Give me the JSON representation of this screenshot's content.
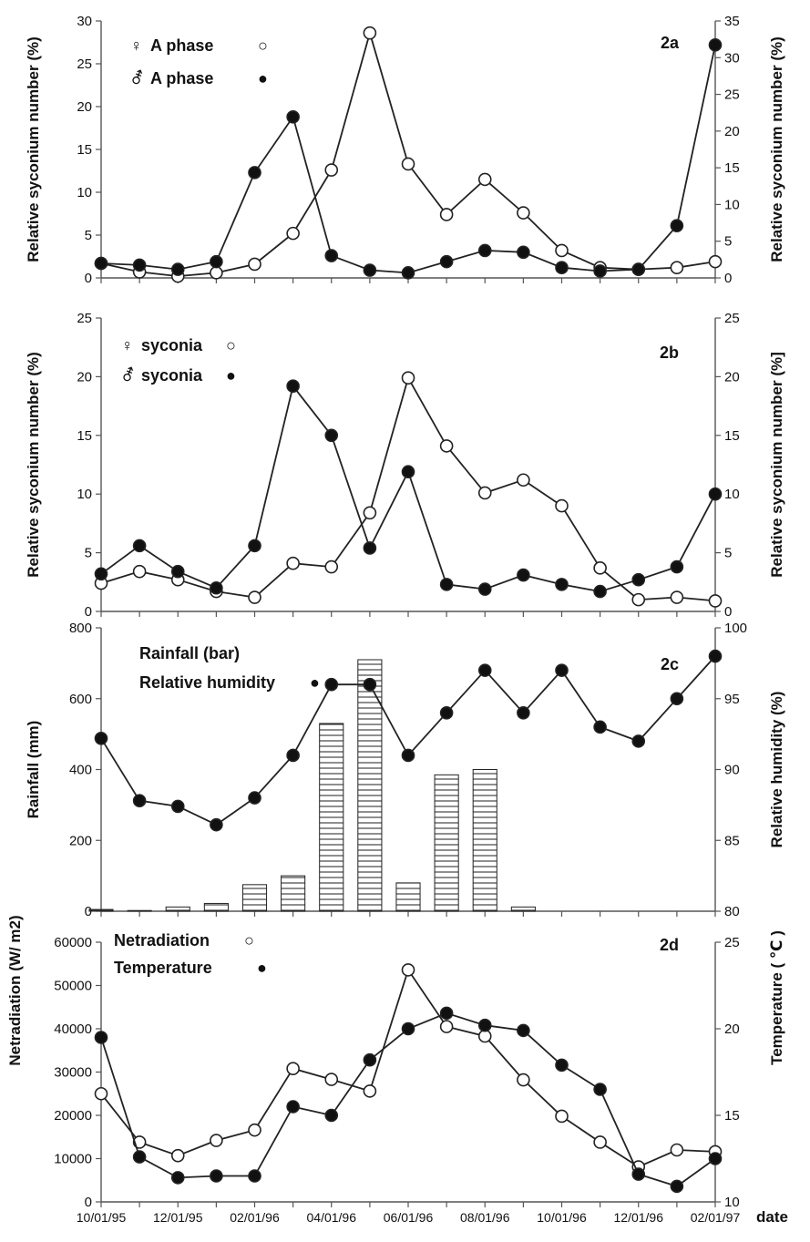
{
  "figure": {
    "x_ticks": [
      "10/01/95",
      "12/01/95",
      "02/01/96",
      "04/01/96",
      "06/01/96",
      "08/01/96",
      "10/01/96",
      "12/01/96",
      "02/01/97"
    ],
    "x_title": "date"
  },
  "chart_data": [
    {
      "id": "2a",
      "type": "line",
      "panel_label": "2a",
      "ylabel_left": "Relative syconium number (%)",
      "ylabel_right": "Relative syconium number (%)",
      "ylim_left": [
        0,
        30
      ],
      "yticks_left": [
        0,
        5,
        10,
        15,
        20,
        25,
        30
      ],
      "ylim_right": [
        0,
        35
      ],
      "yticks_right": [
        0,
        5,
        10,
        15,
        20,
        25,
        30,
        35
      ],
      "x": [
        "10/95",
        "11/95",
        "12/95",
        "01/96",
        "02/96",
        "03/96",
        "04/96",
        "05/96",
        "06/96",
        "07/96",
        "08/96",
        "09/96",
        "10/96",
        "11/96",
        "12/96",
        "01/97",
        "02/97"
      ],
      "legend": [
        {
          "symbol": "♀",
          "label": "A phase",
          "marker": "○"
        },
        {
          "symbol": "⚦",
          "label": "A phase",
          "marker": "●"
        }
      ],
      "series": [
        {
          "marker": "open",
          "axis": "left",
          "values": [
            1.7,
            0.7,
            0.2,
            0.6,
            1.6,
            5.2,
            12.6,
            28.6,
            13.3,
            7.4,
            11.5,
            7.6,
            3.2,
            1.2,
            1.0,
            1.2,
            1.9
          ]
        },
        {
          "marker": "filled",
          "axis": "left",
          "values": [
            1.7,
            1.5,
            1.0,
            1.9,
            12.3,
            18.8,
            2.6,
            0.9,
            0.6,
            1.9,
            3.2,
            3.0,
            1.2,
            0.8,
            1.0,
            6.1,
            27.2
          ]
        }
      ]
    },
    {
      "id": "2b",
      "type": "line",
      "panel_label": "2b",
      "ylabel_left": "Relative syconium number (%)",
      "ylabel_right": "Relative syconium number (%]",
      "ylim_left": [
        0,
        25
      ],
      "yticks_left": [
        0,
        5,
        10,
        15,
        20,
        25
      ],
      "ylim_right": [
        0,
        25
      ],
      "yticks_right": [
        0,
        5,
        10,
        15,
        20,
        25
      ],
      "x": [
        "10/95",
        "11/95",
        "12/95",
        "01/96",
        "02/96",
        "03/96",
        "04/96",
        "05/96",
        "06/96",
        "07/96",
        "08/96",
        "09/96",
        "10/96",
        "11/96",
        "12/96",
        "01/97",
        "02/97"
      ],
      "legend": [
        {
          "symbol": "♀",
          "label": "syconia",
          "marker": "○"
        },
        {
          "symbol": "⚦",
          "label": "syconia",
          "marker": "●"
        }
      ],
      "series": [
        {
          "marker": "open",
          "axis": "left",
          "values": [
            2.4,
            3.4,
            2.7,
            1.7,
            1.2,
            4.1,
            3.8,
            8.4,
            19.9,
            14.1,
            10.1,
            11.2,
            9.0,
            3.7,
            1.0,
            1.2,
            0.9
          ]
        },
        {
          "marker": "filled",
          "axis": "left",
          "values": [
            3.2,
            5.6,
            3.4,
            2.0,
            5.6,
            19.2,
            15.0,
            5.4,
            11.9,
            2.3,
            1.9,
            3.1,
            2.3,
            1.7,
            2.7,
            3.8,
            10.0
          ]
        }
      ]
    },
    {
      "id": "2c",
      "type": "bar",
      "panel_label": "2c",
      "ylabel_left": "Rainfall (mm)",
      "ylabel_right": "Relative humidity (%)",
      "ylim_left": [
        0,
        800
      ],
      "yticks_left": [
        0,
        200,
        400,
        600,
        800
      ],
      "ylim_right": [
        80,
        100
      ],
      "yticks_right": [
        80,
        85,
        90,
        95,
        100
      ],
      "x": [
        "10/95",
        "11/95",
        "12/95",
        "01/96",
        "02/96",
        "03/96",
        "04/96",
        "05/96",
        "06/96",
        "07/96",
        "08/96",
        "09/96",
        "10/96",
        "11/96",
        "12/96",
        "01/97",
        "02/97"
      ],
      "legend": [
        {
          "label": "Rainfall (bar)",
          "marker": ""
        },
        {
          "label": "Relative humidity",
          "marker": "●"
        }
      ],
      "series": [
        {
          "kind": "bar",
          "axis": "left",
          "values": [
            5,
            2,
            12,
            22,
            75,
            100,
            530,
            710,
            80,
            385,
            400,
            12,
            0,
            0,
            0,
            0,
            0
          ]
        },
        {
          "kind": "line",
          "marker": "filled",
          "axis": "right",
          "values": [
            92.2,
            87.8,
            87.4,
            86.1,
            88.0,
            91.0,
            96.0,
            96.0,
            91.0,
            94.0,
            97.0,
            94.0,
            97.0,
            93.0,
            92.0,
            95.0,
            98.0
          ]
        }
      ]
    },
    {
      "id": "2d",
      "type": "line",
      "panel_label": "2d",
      "ylabel_left": "Netradiation (W/ m2)",
      "ylabel_right": "Temperature ( ℃ )",
      "ylim_left": [
        0,
        60000
      ],
      "yticks_left": [
        0,
        10000,
        20000,
        30000,
        40000,
        50000,
        60000
      ],
      "ylim_right": [
        10,
        25
      ],
      "yticks_right": [
        10,
        15,
        20,
        25
      ],
      "x": [
        "10/95",
        "11/95",
        "12/95",
        "01/96",
        "02/96",
        "03/96",
        "04/96",
        "05/96",
        "06/96",
        "07/96",
        "08/96",
        "09/96",
        "10/96",
        "11/96",
        "12/96",
        "01/97",
        "02/97"
      ],
      "legend": [
        {
          "label": "Netradiation",
          "marker": "○"
        },
        {
          "label": "Temperature",
          "marker": "●"
        }
      ],
      "series": [
        {
          "marker": "open",
          "axis": "left",
          "values": [
            25000,
            13800,
            10700,
            14200,
            16600,
            30800,
            28300,
            25600,
            53600,
            40500,
            38300,
            28200,
            19800,
            13800,
            8100,
            12000,
            11600
          ]
        },
        {
          "marker": "filled",
          "axis": "right",
          "values": [
            19.5,
            12.6,
            11.4,
            11.5,
            11.5,
            15.5,
            15.0,
            18.2,
            20.0,
            20.9,
            20.2,
            19.9,
            17.9,
            16.5,
            11.6,
            10.9,
            12.5
          ]
        }
      ]
    }
  ]
}
